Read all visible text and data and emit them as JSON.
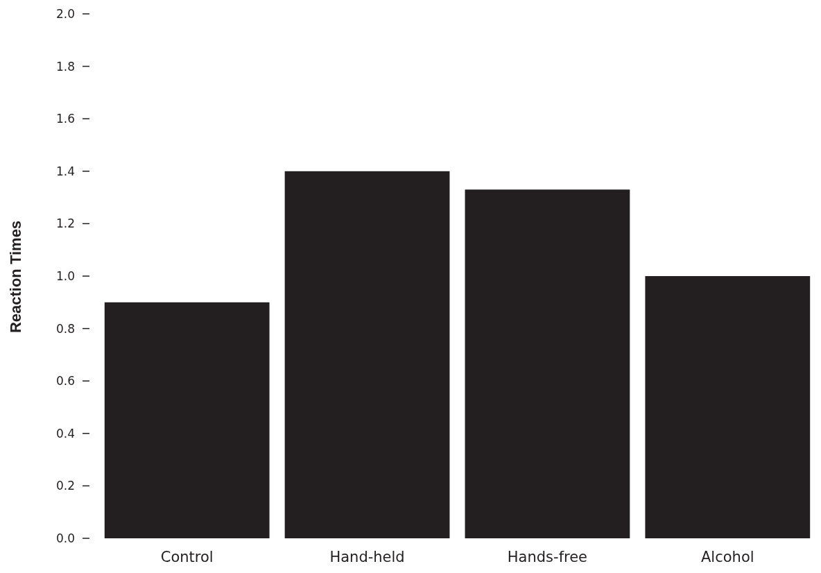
{
  "chart_data": {
    "type": "bar",
    "ylabel": "Reaction Times",
    "categories": [
      "Control",
      "Hand-held",
      "Hands-free",
      "Alcohol"
    ],
    "values": [
      0.9,
      1.4,
      1.33,
      1.0
    ],
    "color": "#231f20",
    "ylim": [
      0,
      2.0
    ],
    "yticks": [
      {
        "value": 0,
        "label": "0.0"
      },
      {
        "value": 0.2,
        "label": "0.2"
      },
      {
        "value": 0.4,
        "label": "0.4"
      },
      {
        "value": 0.6,
        "label": "0.6"
      },
      {
        "value": 0.8,
        "label": "0.8"
      },
      {
        "value": 1.0,
        "label": "1.0"
      },
      {
        "value": 1.2,
        "label": "1.2"
      },
      {
        "value": 1.4,
        "label": "1.4"
      },
      {
        "value": 1.6,
        "label": "1.6"
      },
      {
        "value": 1.8,
        "label": "1.8"
      },
      {
        "value": 2.0,
        "label": "2.0"
      }
    ],
    "grid": false
  }
}
